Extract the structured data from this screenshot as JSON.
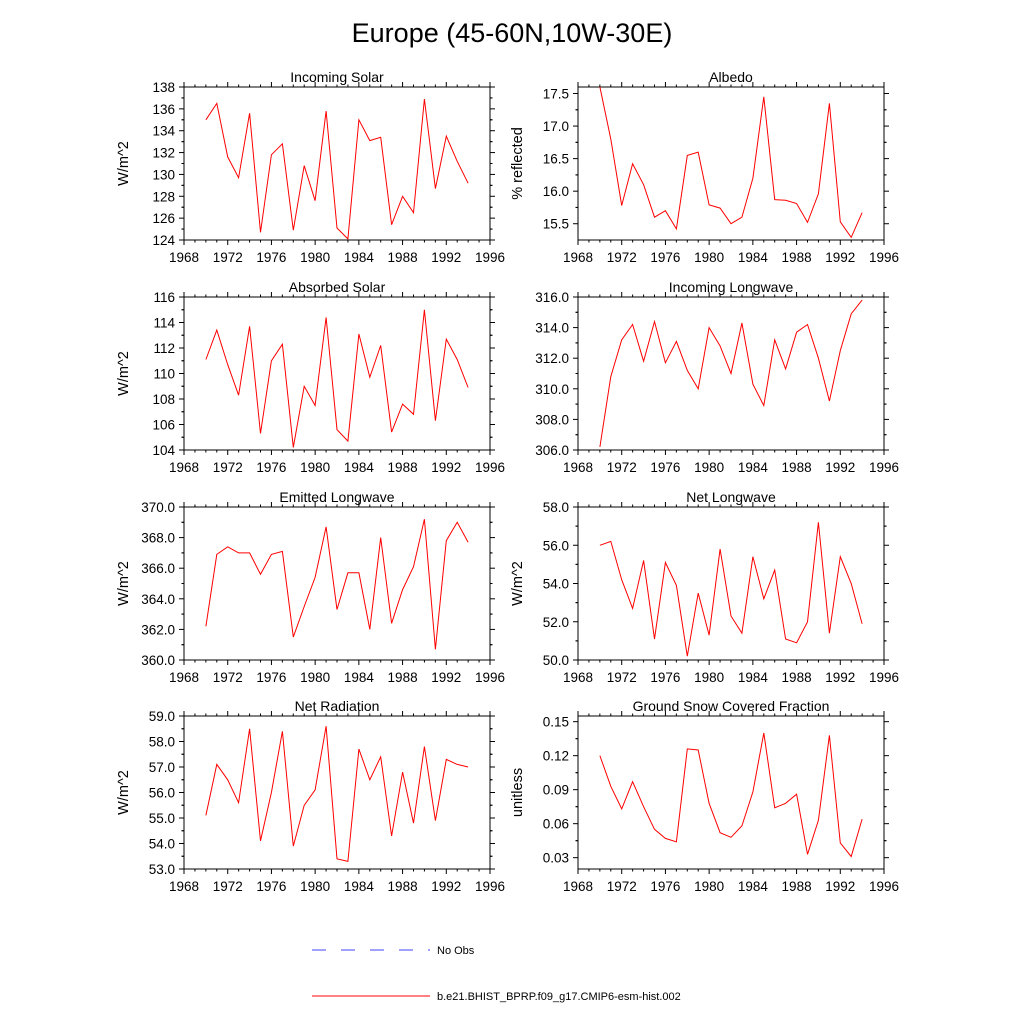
{
  "title": "Europe (45-60N,10W-30E)",
  "colors": {
    "model": "#ff0000",
    "obs": "#4040ff",
    "axis": "#000000"
  },
  "legend": [
    {
      "label": "No Obs",
      "style": "dashed",
      "color": "#4040ff"
    },
    {
      "label": "b.e21.BHIST_BPRP.f09_g17.CMIP6-esm-hist.002",
      "style": "solid",
      "color": "#ff0000"
    }
  ],
  "chart_data": [
    {
      "type": "line",
      "title": "Incoming Solar",
      "ylabel": "W/m^2",
      "xlim": [
        1968,
        1996
      ],
      "xticks": [
        1968,
        1972,
        1976,
        1980,
        1984,
        1988,
        1992,
        1996
      ],
      "ylim": [
        124,
        138
      ],
      "yticks": [
        124,
        126,
        128,
        130,
        132,
        134,
        136,
        138
      ],
      "ytick_labels": [
        "124",
        "126",
        "128",
        "130",
        "132",
        "134",
        "136",
        "138"
      ],
      "x": [
        1970,
        1971,
        1972,
        1973,
        1974,
        1975,
        1976,
        1977,
        1978,
        1979,
        1980,
        1981,
        1982,
        1983,
        1984,
        1985,
        1986,
        1987,
        1988,
        1989,
        1990,
        1991,
        1992,
        1993,
        1994
      ],
      "series": [
        {
          "name": "b.e21.BHIST_BPRP.f09_g17.CMIP6-esm-hist.002",
          "values": [
            135.0,
            136.5,
            131.6,
            129.7,
            135.6,
            124.7,
            131.8,
            132.8,
            124.9,
            130.8,
            127.6,
            135.8,
            125.1,
            124.1,
            135.0,
            133.1,
            133.4,
            125.4,
            128.0,
            126.5,
            136.9,
            128.7,
            133.5,
            131.2,
            129.2
          ]
        }
      ]
    },
    {
      "type": "line",
      "title": "Albedo",
      "ylabel": "% reflected",
      "xlim": [
        1968,
        1996
      ],
      "xticks": [
        1968,
        1972,
        1976,
        1980,
        1984,
        1988,
        1992,
        1996
      ],
      "ylim": [
        15.25,
        17.6
      ],
      "yticks": [
        15.5,
        16.0,
        16.5,
        17.0,
        17.5
      ],
      "ytick_labels": [
        "15.5",
        "16.0",
        "16.5",
        "17.0",
        "17.5"
      ],
      "x": [
        1970,
        1971,
        1972,
        1973,
        1974,
        1975,
        1976,
        1977,
        1978,
        1979,
        1980,
        1981,
        1982,
        1983,
        1984,
        1985,
        1986,
        1987,
        1988,
        1989,
        1990,
        1991,
        1992,
        1993,
        1994
      ],
      "series": [
        {
          "name": "b.e21.BHIST_BPRP.f09_g17.CMIP6-esm-hist.002",
          "values": [
            17.6,
            16.8,
            15.78,
            16.42,
            16.1,
            15.6,
            15.7,
            15.42,
            16.55,
            16.6,
            15.79,
            15.74,
            15.5,
            15.6,
            16.2,
            17.45,
            15.87,
            15.86,
            15.81,
            15.52,
            15.96,
            17.35,
            15.53,
            15.29,
            15.67
          ]
        }
      ]
    },
    {
      "type": "line",
      "title": "Absorbed Solar",
      "ylabel": "W/m^2",
      "xlim": [
        1968,
        1996
      ],
      "xticks": [
        1968,
        1972,
        1976,
        1980,
        1984,
        1988,
        1992,
        1996
      ],
      "ylim": [
        104,
        116
      ],
      "yticks": [
        104,
        106,
        108,
        110,
        112,
        114,
        116
      ],
      "ytick_labels": [
        "104",
        "106",
        "108",
        "110",
        "112",
        "114",
        "116"
      ],
      "x": [
        1970,
        1971,
        1972,
        1973,
        1974,
        1975,
        1976,
        1977,
        1978,
        1979,
        1980,
        1981,
        1982,
        1983,
        1984,
        1985,
        1986,
        1987,
        1988,
        1989,
        1990,
        1991,
        1992,
        1993,
        1994
      ],
      "series": [
        {
          "name": "b.e21.BHIST_BPRP.f09_g17.CMIP6-esm-hist.002",
          "values": [
            111.1,
            113.4,
            110.7,
            108.3,
            113.7,
            105.3,
            111.0,
            112.3,
            104.2,
            109.0,
            107.5,
            114.4,
            105.6,
            104.7,
            113.1,
            109.7,
            112.2,
            105.4,
            107.6,
            106.8,
            115.0,
            106.3,
            112.7,
            111.1,
            108.9
          ]
        }
      ]
    },
    {
      "type": "line",
      "title": "Incoming Longwave",
      "ylabel": "",
      "xlim": [
        1968,
        1996
      ],
      "xticks": [
        1968,
        1972,
        1976,
        1980,
        1984,
        1988,
        1992,
        1996
      ],
      "ylim": [
        306,
        316
      ],
      "yticks": [
        306,
        308,
        310,
        312,
        314,
        316
      ],
      "ytick_labels": [
        "306.0",
        "308.0",
        "310.0",
        "312.0",
        "314.0",
        "316.0"
      ],
      "x": [
        1970,
        1971,
        1972,
        1973,
        1974,
        1975,
        1976,
        1977,
        1978,
        1979,
        1980,
        1981,
        1982,
        1983,
        1984,
        1985,
        1986,
        1987,
        1988,
        1989,
        1990,
        1991,
        1992,
        1993,
        1994
      ],
      "series": [
        {
          "name": "b.e21.BHIST_BPRP.f09_g17.CMIP6-esm-hist.002",
          "values": [
            306.2,
            310.8,
            313.2,
            314.2,
            311.8,
            314.4,
            311.7,
            313.1,
            311.2,
            310.0,
            314.0,
            312.8,
            311.0,
            314.3,
            310.3,
            308.9,
            313.2,
            311.3,
            313.7,
            314.2,
            312.0,
            309.2,
            312.5,
            314.9,
            315.8
          ]
        }
      ]
    },
    {
      "type": "line",
      "title": "Emitted Longwave",
      "ylabel": "W/m^2",
      "xlim": [
        1968,
        1996
      ],
      "xticks": [
        1968,
        1972,
        1976,
        1980,
        1984,
        1988,
        1992,
        1996
      ],
      "ylim": [
        360,
        370
      ],
      "yticks": [
        360,
        362,
        364,
        366,
        368,
        370
      ],
      "ytick_labels": [
        "360.0",
        "362.0",
        "364.0",
        "366.0",
        "368.0",
        "370.0"
      ],
      "x": [
        1970,
        1971,
        1972,
        1973,
        1974,
        1975,
        1976,
        1977,
        1978,
        1979,
        1980,
        1981,
        1982,
        1983,
        1984,
        1985,
        1986,
        1987,
        1988,
        1989,
        1990,
        1991,
        1992,
        1993,
        1994
      ],
      "series": [
        {
          "name": "b.e21.BHIST_BPRP.f09_g17.CMIP6-esm-hist.002",
          "values": [
            362.2,
            366.9,
            367.4,
            367.0,
            367.0,
            365.6,
            366.9,
            367.1,
            361.5,
            363.5,
            365.4,
            368.7,
            363.3,
            365.7,
            365.7,
            362.0,
            368.0,
            362.4,
            364.6,
            366.1,
            369.2,
            360.7,
            367.8,
            369.0,
            367.7
          ]
        }
      ]
    },
    {
      "type": "line",
      "title": "Net Longwave",
      "ylabel": "W/m^2",
      "xlim": [
        1968,
        1996
      ],
      "xticks": [
        1968,
        1972,
        1976,
        1980,
        1984,
        1988,
        1992,
        1996
      ],
      "ylim": [
        50,
        58
      ],
      "yticks": [
        50,
        52,
        54,
        56,
        58
      ],
      "ytick_labels": [
        "50.0",
        "52.0",
        "54.0",
        "56.0",
        "58.0"
      ],
      "x": [
        1970,
        1971,
        1972,
        1973,
        1974,
        1975,
        1976,
        1977,
        1978,
        1979,
        1980,
        1981,
        1982,
        1983,
        1984,
        1985,
        1986,
        1987,
        1988,
        1989,
        1990,
        1991,
        1992,
        1993,
        1994
      ],
      "series": [
        {
          "name": "b.e21.BHIST_BPRP.f09_g17.CMIP6-esm-hist.002",
          "values": [
            56.0,
            56.2,
            54.2,
            52.7,
            55.2,
            51.1,
            55.1,
            53.9,
            50.2,
            53.5,
            51.3,
            55.8,
            52.3,
            51.4,
            55.4,
            53.2,
            54.7,
            51.1,
            50.9,
            52.0,
            57.2,
            51.4,
            55.4,
            54.0,
            51.9
          ]
        }
      ]
    },
    {
      "type": "line",
      "title": "Net Radiation",
      "ylabel": "W/m^2",
      "xlim": [
        1968,
        1996
      ],
      "xticks": [
        1968,
        1972,
        1976,
        1980,
        1984,
        1988,
        1992,
        1996
      ],
      "ylim": [
        53,
        59
      ],
      "yticks": [
        53,
        54,
        55,
        56,
        57,
        58,
        59
      ],
      "ytick_labels": [
        "53.0",
        "54.0",
        "55.0",
        "56.0",
        "57.0",
        "58.0",
        "59.0"
      ],
      "x": [
        1970,
        1971,
        1972,
        1973,
        1974,
        1975,
        1976,
        1977,
        1978,
        1979,
        1980,
        1981,
        1982,
        1983,
        1984,
        1985,
        1986,
        1987,
        1988,
        1989,
        1990,
        1991,
        1992,
        1993,
        1994
      ],
      "series": [
        {
          "name": "b.e21.BHIST_BPRP.f09_g17.CMIP6-esm-hist.002",
          "values": [
            55.1,
            57.1,
            56.5,
            55.6,
            58.5,
            54.1,
            56.0,
            58.4,
            53.9,
            55.5,
            56.1,
            58.6,
            53.4,
            53.3,
            57.7,
            56.5,
            57.4,
            54.3,
            56.8,
            54.8,
            57.8,
            54.9,
            57.3,
            57.1,
            57.0
          ]
        }
      ]
    },
    {
      "type": "line",
      "title": "Ground Snow Covered Fraction",
      "ylabel": "unitless",
      "xlim": [
        1968,
        1996
      ],
      "xticks": [
        1968,
        1972,
        1976,
        1980,
        1984,
        1988,
        1992,
        1996
      ],
      "ylim": [
        0.02,
        0.155
      ],
      "yticks": [
        0.03,
        0.06,
        0.09,
        0.12,
        0.15
      ],
      "ytick_labels": [
        "0.03",
        "0.06",
        "0.09",
        "0.12",
        "0.15"
      ],
      "x": [
        1970,
        1971,
        1972,
        1973,
        1974,
        1975,
        1976,
        1977,
        1978,
        1979,
        1980,
        1981,
        1982,
        1983,
        1984,
        1985,
        1986,
        1987,
        1988,
        1989,
        1990,
        1991,
        1992,
        1993,
        1994
      ],
      "series": [
        {
          "name": "b.e21.BHIST_BPRP.f09_g17.CMIP6-esm-hist.002",
          "values": [
            0.12,
            0.093,
            0.073,
            0.097,
            0.075,
            0.055,
            0.047,
            0.044,
            0.126,
            0.125,
            0.078,
            0.052,
            0.048,
            0.058,
            0.088,
            0.14,
            0.074,
            0.078,
            0.086,
            0.033,
            0.063,
            0.138,
            0.043,
            0.031,
            0.064
          ]
        }
      ]
    }
  ]
}
